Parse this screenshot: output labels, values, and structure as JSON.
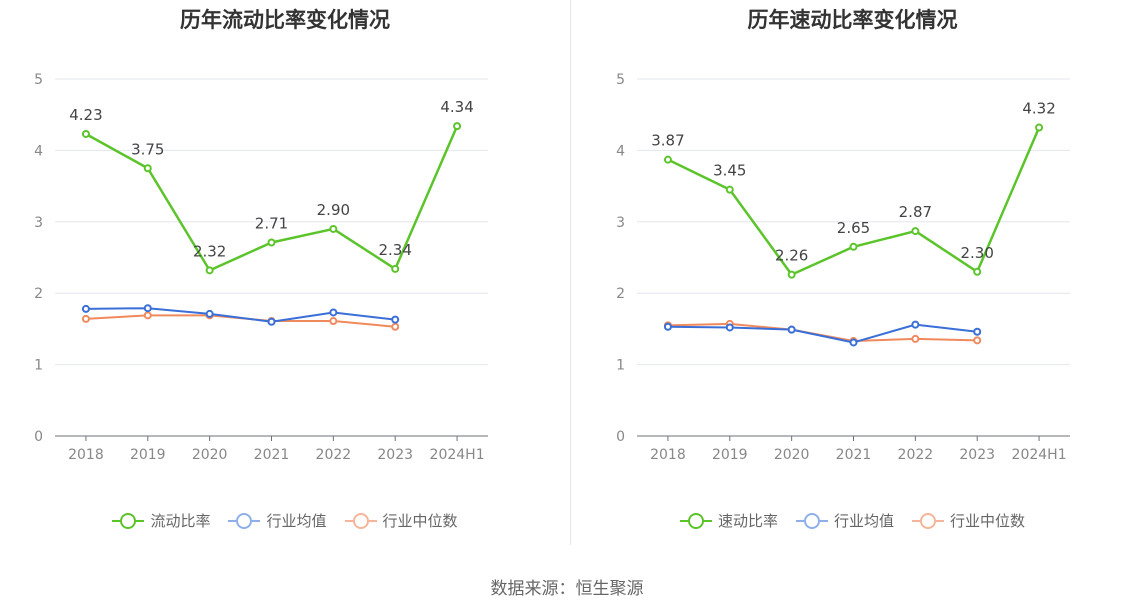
{
  "source": "数据来源：恒生聚源",
  "chart_data": [
    {
      "type": "line",
      "title": "历年流动比率变化情况",
      "categories": [
        "2018",
        "2019",
        "2020",
        "2021",
        "2022",
        "2023",
        "2024H1"
      ],
      "ylim": [
        0,
        5
      ],
      "yticks": [
        0,
        1,
        2,
        3,
        4,
        5
      ],
      "grid": true,
      "legend_position": "bottom",
      "series": [
        {
          "name": "流动比率",
          "color": "#5cc42b",
          "values": [
            4.23,
            3.75,
            2.32,
            2.71,
            2.9,
            2.34,
            4.34
          ],
          "labels": [
            "4.23",
            "3.75",
            "2.32",
            "2.71",
            "2.90",
            "2.34",
            "4.34"
          ]
        },
        {
          "name": "行业均值",
          "color": "#3a6fd8",
          "legend_color": "#8eb0ea",
          "values": [
            1.78,
            1.79,
            1.71,
            1.6,
            1.73,
            1.63,
            null
          ]
        },
        {
          "name": "行业中位数",
          "color": "#f08a5d",
          "legend_color": "#f6b49a",
          "values": [
            1.64,
            1.69,
            1.69,
            1.61,
            1.61,
            1.53,
            null
          ]
        }
      ]
    },
    {
      "type": "line",
      "title": "历年速动比率变化情况",
      "categories": [
        "2018",
        "2019",
        "2020",
        "2021",
        "2022",
        "2023",
        "2024H1"
      ],
      "ylim": [
        0,
        5
      ],
      "yticks": [
        0,
        1,
        2,
        3,
        4,
        5
      ],
      "grid": true,
      "legend_position": "bottom",
      "series": [
        {
          "name": "速动比率",
          "color": "#5cc42b",
          "values": [
            3.87,
            3.45,
            2.26,
            2.65,
            2.87,
            2.3,
            4.32
          ],
          "labels": [
            "3.87",
            "3.45",
            "2.26",
            "2.65",
            "2.87",
            "2.30",
            "4.32"
          ]
        },
        {
          "name": "行业均值",
          "color": "#3a6fd8",
          "legend_color": "#8eb0ea",
          "values": [
            1.53,
            1.52,
            1.49,
            1.31,
            1.56,
            1.46,
            null
          ]
        },
        {
          "name": "行业中位数",
          "color": "#f08a5d",
          "legend_color": "#f6b49a",
          "values": [
            1.55,
            1.57,
            1.49,
            1.33,
            1.36,
            1.34,
            null
          ]
        }
      ]
    }
  ]
}
